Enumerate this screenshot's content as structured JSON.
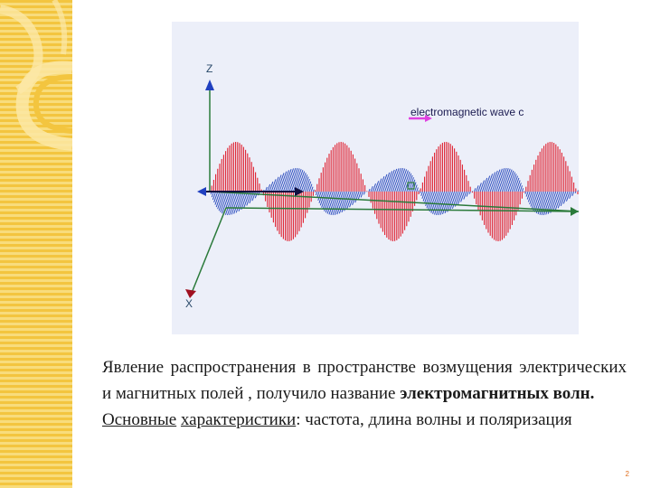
{
  "sidebar": {
    "accent_color": "#f3c53f"
  },
  "figure": {
    "axis_z_label": "Z",
    "axis_x_label": "X",
    "legend_label": "electromagnetic wave c",
    "e_field_color": "#e02030",
    "b_field_color": "#3050c0",
    "propagation_axis_color": "#2a7a3a"
  },
  "text": {
    "p1_plain": "Явление распространения в пространстве возмущения электрических и магнитных полей , получило название",
    "p1_bold": "электромагнитных волн.",
    "p2_word1": "Основные",
    "p2_word2": "характеристики",
    "p2_rest": ": частота, длина волны и поляризация"
  },
  "page_number": "2"
}
